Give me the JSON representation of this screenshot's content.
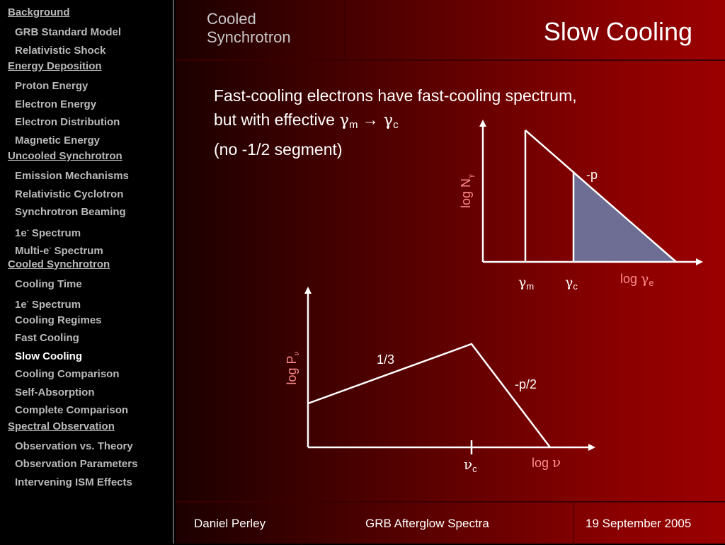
{
  "sidebar": {
    "sections": [
      {
        "title": "Background",
        "items": [
          "GRB Standard Model",
          "Relativistic Shock"
        ]
      },
      {
        "title": "Energy Deposition",
        "items": [
          "Proton Energy",
          "Electron Energy",
          "Electron Distribution",
          "Magnetic Energy"
        ]
      },
      {
        "title": "Uncooled Synchrotron",
        "items": [
          "Emission Mechanisms",
          "Relativistic Cyclotron",
          "Synchrotron Beaming",
          "1e- Spectrum",
          "Multi-e- Spectrum"
        ]
      },
      {
        "title": "Cooled Synchrotron",
        "items": [
          "Cooling Time",
          "1e- Spectrum",
          "Cooling Regimes",
          "Fast Cooling",
          "Slow Cooling",
          "Cooling Comparison",
          "Self-Absorption",
          "Complete Comparison"
        ]
      },
      {
        "title": "Spectral Observation",
        "items": [
          "Observation vs. Theory",
          "Observation Parameters",
          "Intervening ISM Effects"
        ]
      }
    ],
    "active_item": "Slow Cooling"
  },
  "header": {
    "section_label": "Cooled Synchrotron",
    "title": "Slow Cooling"
  },
  "body_text": {
    "line1": "Fast-cooling electrons have fast-cooling spectrum,",
    "line2_prefix": "but with effective ",
    "gamma": "γ",
    "sub_m": "m",
    "arrow": " → ",
    "sub_c": "c",
    "line3": "(no -1/2 segment)"
  },
  "diagram_top": {
    "ylabel": "log N",
    "ylabel_sub": "γ",
    "slope_label": "-p",
    "tick1_symbol": "γ",
    "tick1_sub": "m",
    "tick2_symbol": "γ",
    "tick2_sub": "c",
    "xlabel_prefix": "log ",
    "xlabel_symbol": "γ",
    "xlabel_sub": "e",
    "shade_color": "#6e6e94"
  },
  "diagram_bottom": {
    "ylabel": "log P",
    "ylabel_sub": "ν",
    "slope1_label": "1/3",
    "slope2_label": "-p/2",
    "tick_symbol": "ν",
    "tick_sub": "c",
    "xlabel_prefix": "log ",
    "xlabel_symbol": "ν"
  },
  "footer": {
    "author": "Daniel Perley",
    "talk": "GRB Afterglow Spectra",
    "date": "19 September 2005"
  }
}
